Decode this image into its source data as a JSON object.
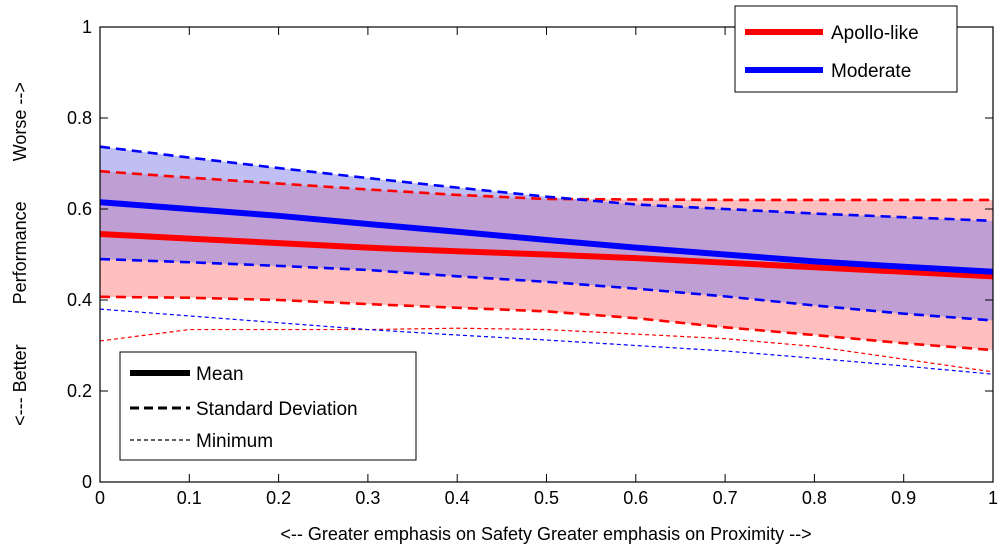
{
  "chart_data": {
    "type": "area",
    "title": "",
    "xlabel": "<-- Greater emphasis on Safety   Greater emphasis on Proximity -->",
    "ylabel": "<--- Better        Performance        Worse -->",
    "xlim": [
      0,
      1
    ],
    "ylim": [
      0,
      1
    ],
    "xticks": [
      "0",
      "0.1",
      "0.2",
      "0.3",
      "0.4",
      "0.5",
      "0.6",
      "0.7",
      "0.8",
      "0.9",
      "1"
    ],
    "yticks": [
      "0",
      "0.2",
      "0.4",
      "0.6",
      "0.8",
      "1"
    ],
    "grid": false,
    "x": [
      0,
      0.1,
      0.2,
      0.3,
      0.4,
      0.5,
      0.6,
      0.7,
      0.8,
      0.9,
      1
    ],
    "series": [
      {
        "name": "Apollo-like",
        "color": "#ff0000",
        "fill": "#ff8080",
        "mean": [
          0.545,
          0.535,
          0.525,
          0.515,
          0.507,
          0.5,
          0.492,
          0.482,
          0.472,
          0.462,
          0.452
        ],
        "upper": [
          0.683,
          0.669,
          0.656,
          0.643,
          0.631,
          0.622,
          0.621,
          0.62,
          0.62,
          0.62,
          0.62
        ],
        "lower": [
          0.407,
          0.405,
          0.4,
          0.391,
          0.383,
          0.375,
          0.36,
          0.34,
          0.323,
          0.305,
          0.29
        ],
        "minimum": [
          0.31,
          0.335,
          0.335,
          0.335,
          0.338,
          0.335,
          0.325,
          0.315,
          0.298,
          0.27,
          0.242
        ]
      },
      {
        "name": "Moderate",
        "color": "#0000ff",
        "fill": "#8080e8",
        "mean": [
          0.615,
          0.6,
          0.585,
          0.567,
          0.55,
          0.532,
          0.515,
          0.5,
          0.485,
          0.473,
          0.462
        ],
        "upper": [
          0.737,
          0.713,
          0.69,
          0.668,
          0.647,
          0.627,
          0.61,
          0.6,
          0.59,
          0.582,
          0.574
        ],
        "lower": [
          0.49,
          0.483,
          0.475,
          0.466,
          0.452,
          0.44,
          0.425,
          0.408,
          0.388,
          0.37,
          0.355
        ],
        "minimum": [
          0.38,
          0.365,
          0.35,
          0.335,
          0.323,
          0.312,
          0.3,
          0.288,
          0.272,
          0.255,
          0.237
        ]
      }
    ],
    "legend_series": {
      "position": "top-right",
      "entries": [
        "Apollo-like",
        "Moderate"
      ]
    },
    "legend_style": {
      "position": "bottom-left",
      "entries": [
        "Mean",
        "Standard Deviation",
        "Minimum"
      ]
    }
  }
}
